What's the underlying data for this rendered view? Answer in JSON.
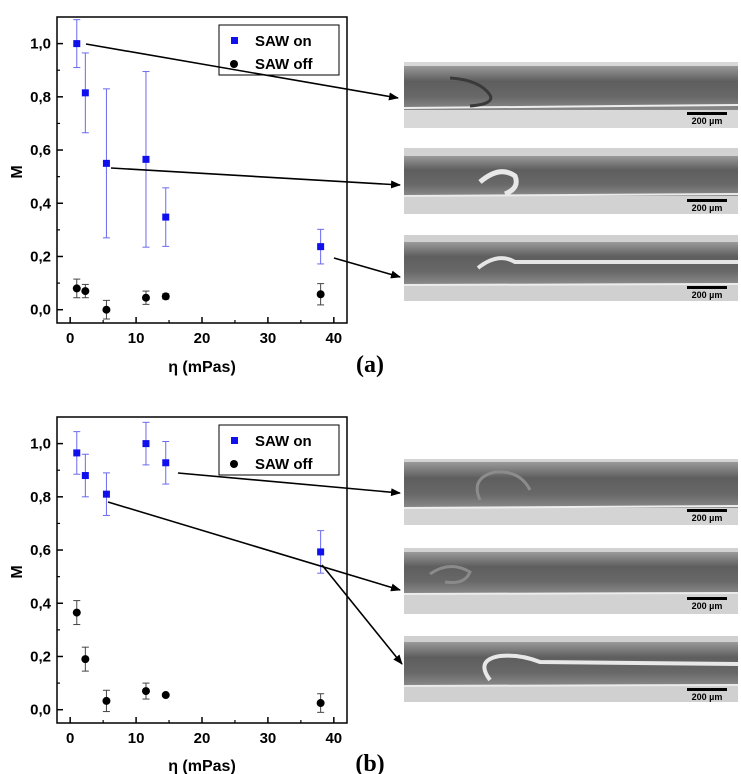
{
  "colors": {
    "saw_on": "#1010ee",
    "saw_off": "#000000",
    "errorbar_on": "#6a6af0",
    "errorbar_off": "#444444"
  },
  "chart_data": [
    {
      "type": "scatter",
      "panel_label": "(a)",
      "xlabel": "η (mPas)",
      "ylabel": "M",
      "xlim": [
        -2,
        42
      ],
      "ylim": [
        -0.05,
        1.1
      ],
      "xticks": [
        "0",
        "10",
        "20",
        "30",
        "40"
      ],
      "yticks": [
        "0,0",
        "0,2",
        "0,4",
        "0,6",
        "0,8",
        "1,0"
      ],
      "legend": {
        "position": "top-right",
        "entries": [
          "SAW on",
          "SAW off"
        ]
      },
      "series": [
        {
          "name": "SAW on",
          "marker": "square",
          "x": [
            1.0,
            2.3,
            5.5,
            11.5,
            14.5,
            38.0
          ],
          "y": [
            1.0,
            0.815,
            0.55,
            0.565,
            0.348,
            0.237
          ],
          "err": [
            0.09,
            0.15,
            0.28,
            0.33,
            0.11,
            0.065
          ]
        },
        {
          "name": "SAW off",
          "marker": "circle",
          "x": [
            1.0,
            2.3,
            5.5,
            11.5,
            14.5,
            38.0
          ],
          "y": [
            0.08,
            0.07,
            0.0,
            0.045,
            0.05,
            0.058
          ],
          "err": [
            0.035,
            0.025,
            0.035,
            0.025,
            0.01,
            0.04
          ]
        }
      ],
      "images": [
        {
          "scalebar": "200 µm"
        },
        {
          "scalebar": "200 µm"
        },
        {
          "scalebar": "200 µm"
        }
      ]
    },
    {
      "type": "scatter",
      "panel_label": "(b)",
      "xlabel": "η (mPas)",
      "ylabel": "M",
      "xlim": [
        -2,
        42
      ],
      "ylim": [
        -0.05,
        1.1
      ],
      "xticks": [
        "0",
        "10",
        "20",
        "30",
        "40"
      ],
      "yticks": [
        "0,0",
        "0,2",
        "0,4",
        "0,6",
        "0,8",
        "1,0"
      ],
      "legend": {
        "position": "top-right",
        "entries": [
          "SAW on",
          "SAW off"
        ]
      },
      "series": [
        {
          "name": "SAW on",
          "marker": "square",
          "x": [
            1.0,
            2.3,
            5.5,
            11.5,
            14.5,
            38.0
          ],
          "y": [
            0.965,
            0.88,
            0.81,
            1.0,
            0.928,
            0.593
          ],
          "err": [
            0.08,
            0.08,
            0.08,
            0.08,
            0.08,
            0.08
          ]
        },
        {
          "name": "SAW off",
          "marker": "circle",
          "x": [
            1.0,
            2.3,
            5.5,
            11.5,
            14.5,
            38.0
          ],
          "y": [
            0.365,
            0.19,
            0.033,
            0.07,
            0.055,
            0.025
          ],
          "err": [
            0.045,
            0.045,
            0.04,
            0.03,
            0.005,
            0.035
          ]
        }
      ],
      "images": [
        {
          "scalebar": "200 µm"
        },
        {
          "scalebar": "200 µm"
        },
        {
          "scalebar": "200 µm"
        }
      ]
    }
  ]
}
